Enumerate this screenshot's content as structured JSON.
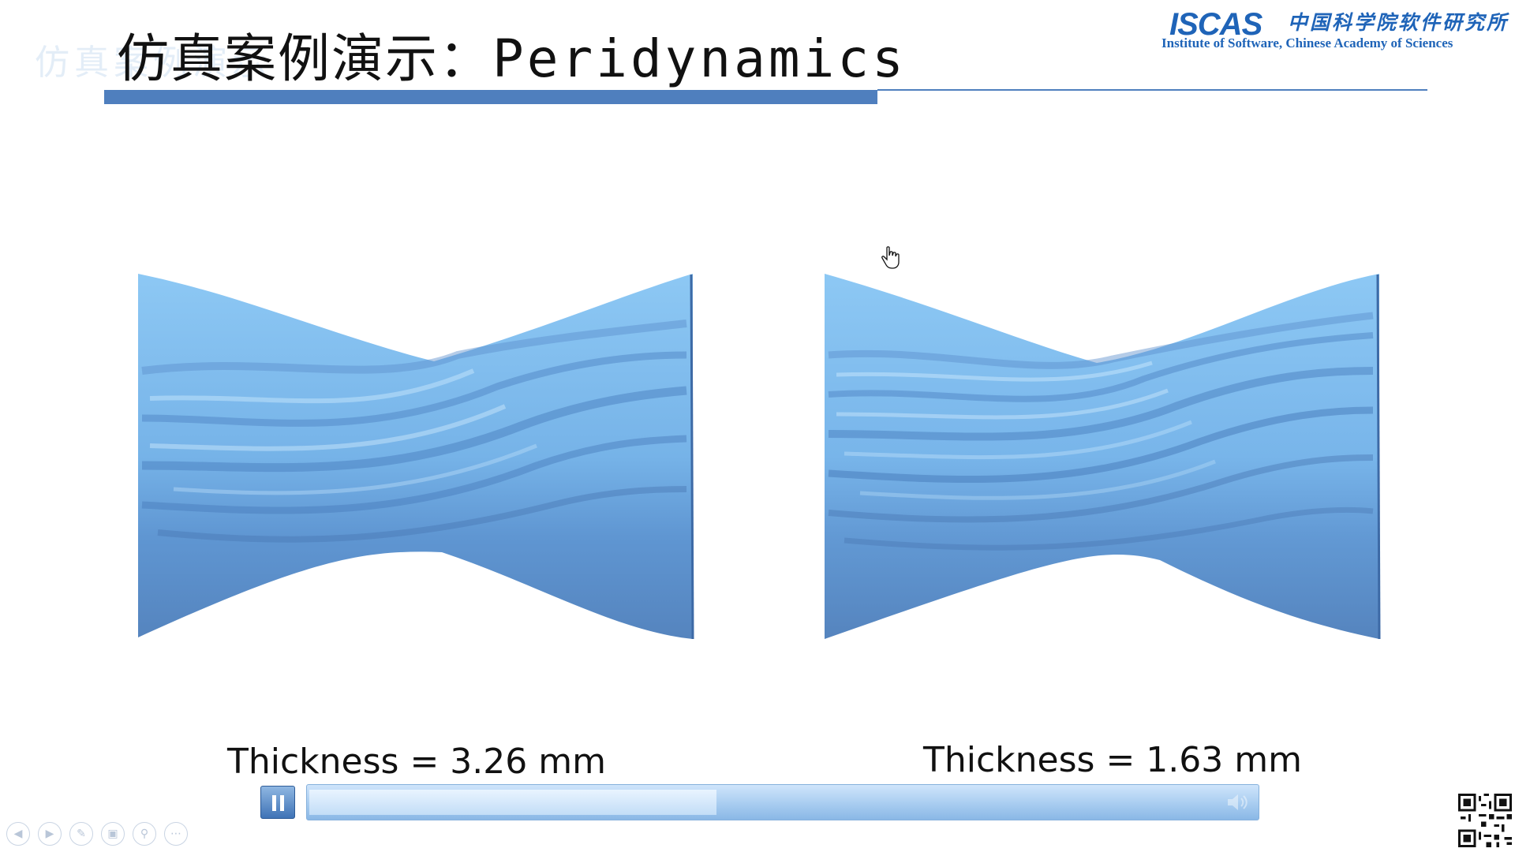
{
  "slide": {
    "title_cn": "仿真案例演示：",
    "title_en": "Peridynamics",
    "ghost_text": "仿真案例演示"
  },
  "logo": {
    "word": "ISCAS",
    "cn": "中国科学院软件研究所",
    "en": "Institute of Software, Chinese Academy of Sciences"
  },
  "figures": [
    {
      "caption": "Thickness = 3.26 mm"
    },
    {
      "caption": "Thickness = 1.63 mm"
    }
  ],
  "media": {
    "state": "playing",
    "progress": 0.43,
    "pause_icon": "pause-icon",
    "volume_icon": "volume-icon"
  },
  "nav": {
    "icons": [
      "prev-icon",
      "next-icon",
      "pen-icon",
      "slides-icon",
      "zoom-icon",
      "more-icon"
    ]
  },
  "colors": {
    "accent": "#4f7fbe",
    "cloth_light": "#8cc6f2",
    "cloth_dark": "#4a7bb5",
    "logo": "#1f64b8"
  }
}
